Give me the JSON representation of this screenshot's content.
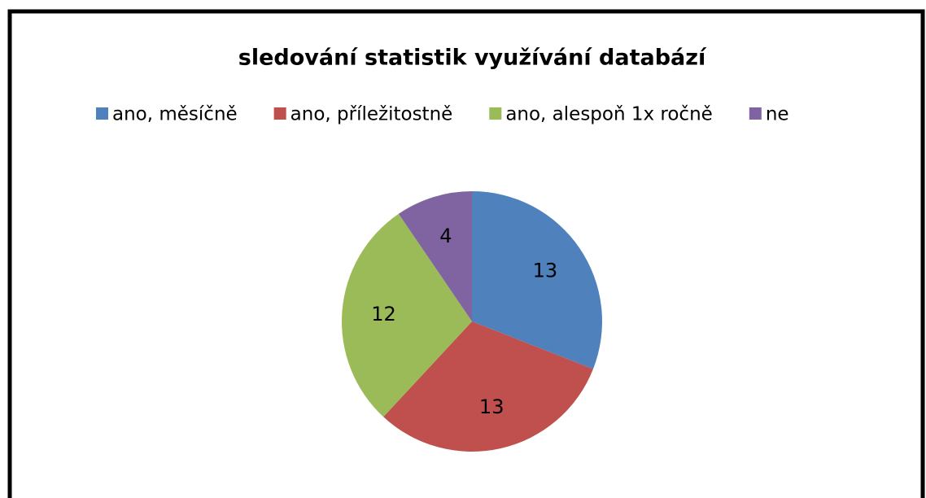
{
  "chart_data": {
    "type": "pie",
    "title": "sledování statistik využívání databází",
    "categories": [
      "ano, měsíčně",
      "ano, příležitostně",
      "ano, alespoň 1x ročně",
      "ne"
    ],
    "values": [
      13,
      13,
      12,
      4
    ],
    "colors": [
      "#4f81bd",
      "#c0504d",
      "#9bbb59",
      "#8064a2"
    ],
    "legend": "top"
  }
}
